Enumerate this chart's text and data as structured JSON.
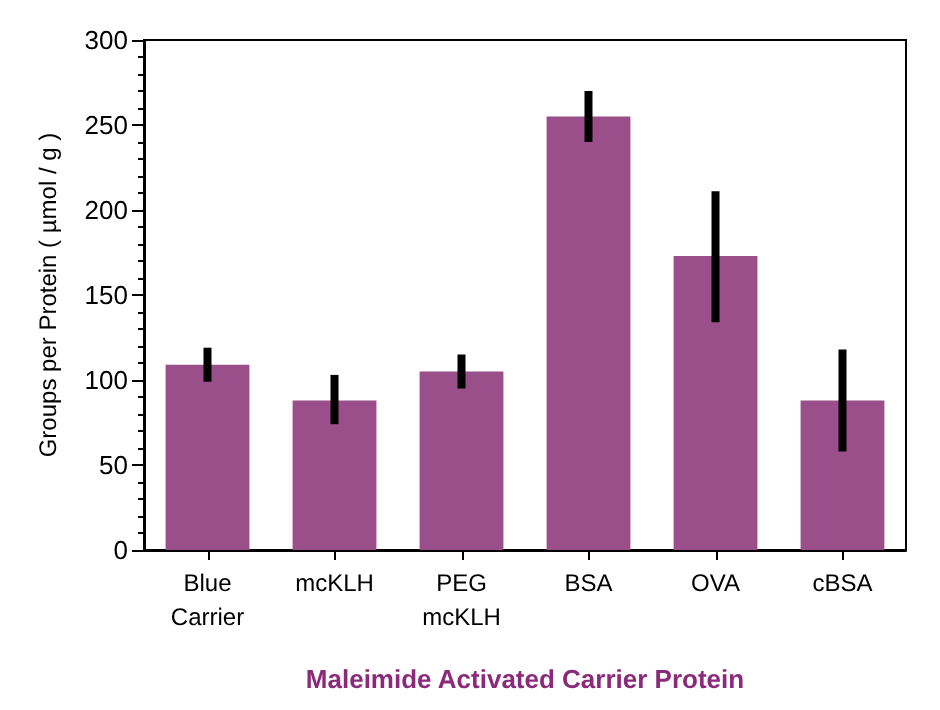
{
  "chart_data": {
    "type": "bar",
    "xlabel": "Maleimide Activated Carrier Protein",
    "ylabel": "Groups per Protein ( µmol / g )",
    "categories": [
      "Blue\nCarrier",
      "mcKLH",
      "PEG\nmcKLH",
      "BSA",
      "OVA",
      "cBSA"
    ],
    "values": [
      109,
      88,
      105,
      255,
      173,
      88
    ],
    "errors": [
      [
        99,
        119
      ],
      [
        74,
        103
      ],
      [
        95,
        115
      ],
      [
        240,
        270
      ],
      [
        134,
        211
      ],
      [
        58,
        118
      ]
    ],
    "color": "#9b4f8a",
    "ylim": [
      0,
      300
    ],
    "yticks": [
      0,
      50,
      100,
      150,
      200,
      250,
      300
    ]
  }
}
